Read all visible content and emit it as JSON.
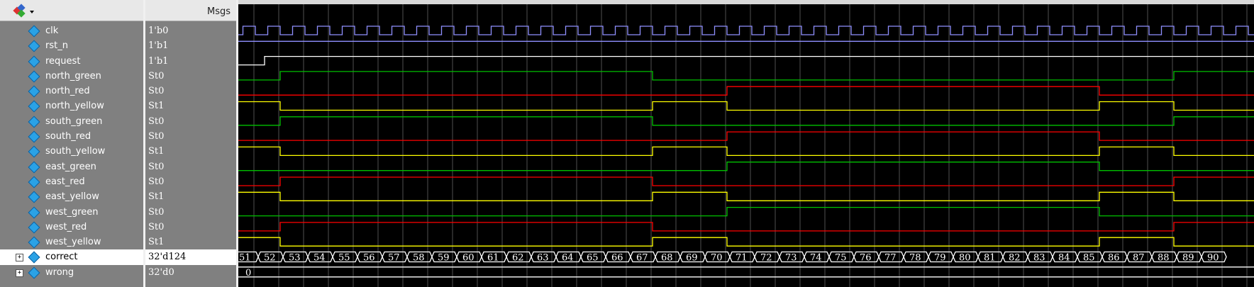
{
  "header": {
    "msgs_label": "Msgs"
  },
  "signals": [
    {
      "name": "clk",
      "value": "1'b0",
      "kind": "clk"
    },
    {
      "name": "rst_n",
      "value": "1'b1",
      "kind": "const_high",
      "color": "#8f8fff"
    },
    {
      "name": "request",
      "value": "1'b1",
      "kind": "request"
    },
    {
      "name": "north_green",
      "value": "St0",
      "kind": "green"
    },
    {
      "name": "north_red",
      "value": "St0",
      "kind": "red"
    },
    {
      "name": "north_yellow",
      "value": "St1",
      "kind": "yellow"
    },
    {
      "name": "south_green",
      "value": "St0",
      "kind": "green"
    },
    {
      "name": "south_red",
      "value": "St0",
      "kind": "red"
    },
    {
      "name": "south_yellow",
      "value": "St1",
      "kind": "yellow"
    },
    {
      "name": "east_green",
      "value": "St0",
      "kind": "green_ew"
    },
    {
      "name": "east_red",
      "value": "St0",
      "kind": "red_ew"
    },
    {
      "name": "east_yellow",
      "value": "St1",
      "kind": "yellow_ew"
    },
    {
      "name": "west_green",
      "value": "St0",
      "kind": "green_ew"
    },
    {
      "name": "west_red",
      "value": "St0",
      "kind": "red_ew"
    },
    {
      "name": "west_yellow",
      "value": "St1",
      "kind": "yellow_ew"
    },
    {
      "name": "correct",
      "value": "32'd124",
      "kind": "bus",
      "selected": true,
      "expandable": true
    },
    {
      "name": "wrong",
      "value": "32'd0",
      "kind": "bus_const",
      "expandable": true,
      "bus_value": "0"
    }
  ],
  "correct_bus_labels": [
    "51",
    "52",
    "53",
    "54",
    "55",
    "56",
    "57",
    "58",
    "59",
    "60",
    "61",
    "62",
    "63",
    "64",
    "65",
    "66",
    "67",
    "68",
    "69",
    "70",
    "71",
    "72",
    "73",
    "74",
    "75",
    "76",
    "77",
    "78",
    "79",
    "80",
    "81",
    "82",
    "83",
    "84",
    "85",
    "86",
    "87",
    "88",
    "89",
    "90"
  ],
  "colors": {
    "clk": "#8f8fff",
    "green": "#00c000",
    "red": "#ff0000",
    "yellow": "#ffff00",
    "bus": "#ffffff",
    "grid": "#505050"
  }
}
